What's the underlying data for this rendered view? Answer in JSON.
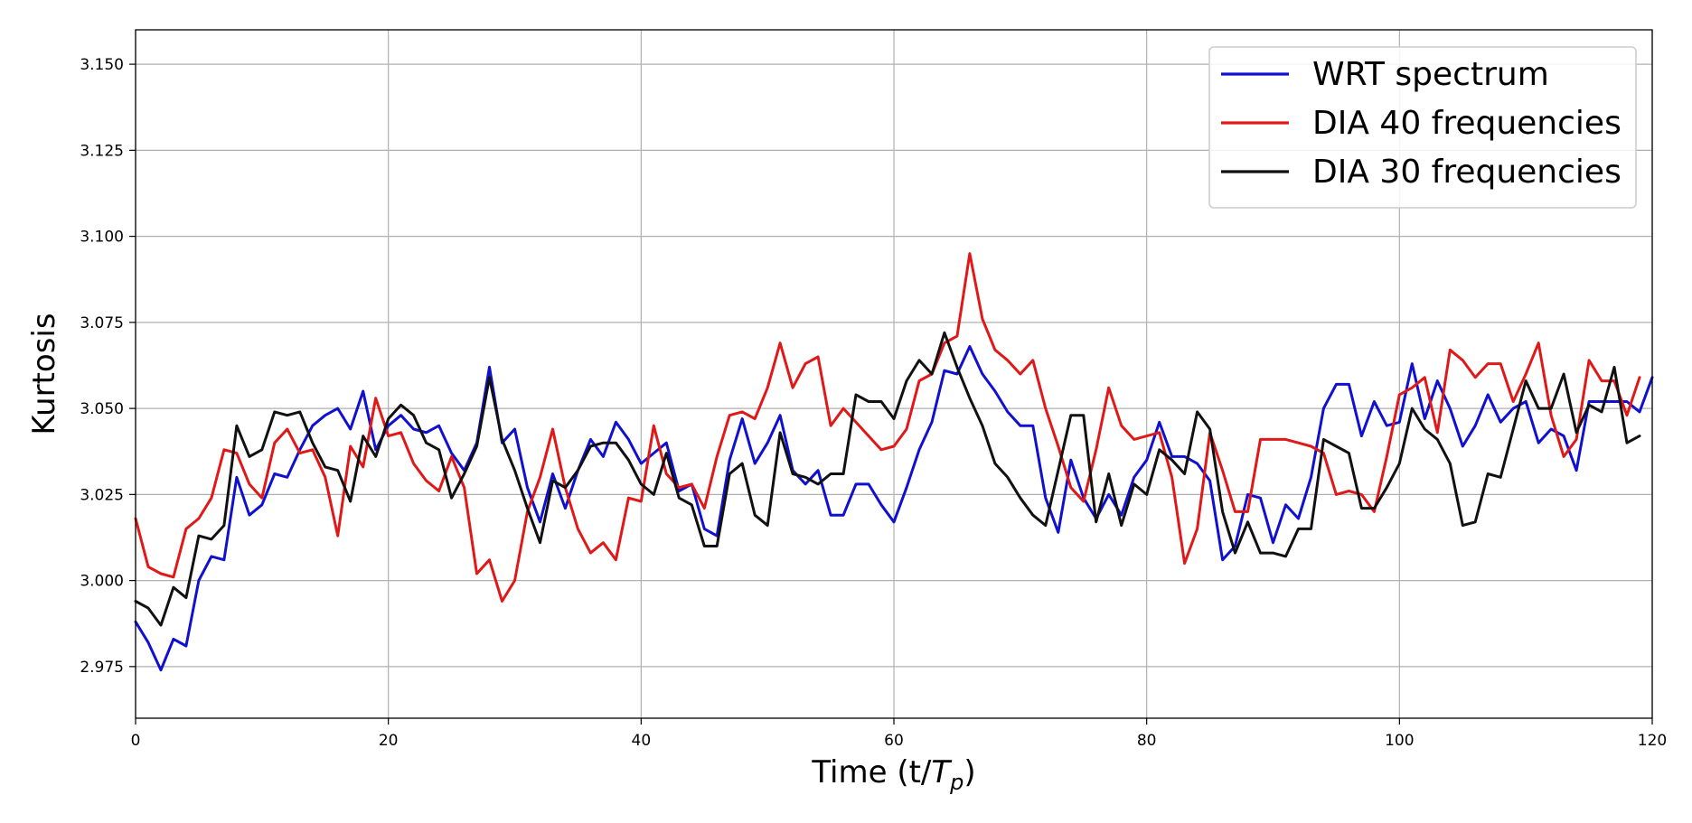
{
  "chart_data": {
    "type": "line",
    "title": "",
    "xlabel": "Time (t/",
    "xlabel_math": "T",
    "xlabel_sub": "p",
    "xlabel_close": ")",
    "ylabel": "Kurtosis",
    "xlim": [
      0,
      120
    ],
    "ylim": [
      2.96,
      3.16
    ],
    "xticks": [
      0,
      20,
      40,
      60,
      80,
      100,
      120
    ],
    "yticks": [
      2.975,
      3.0,
      3.025,
      3.05,
      3.075,
      3.1,
      3.125,
      3.15
    ],
    "xtick_labels": [
      "0",
      "20",
      "40",
      "60",
      "80",
      "100",
      "120"
    ],
    "ytick_labels": [
      "2.975",
      "3.000",
      "3.025",
      "3.050",
      "3.075",
      "3.100",
      "3.125",
      "3.150"
    ],
    "grid": true,
    "legend_position": "top-right",
    "series": [
      {
        "name": "WRT spectrum",
        "color": "#1010d0",
        "values": [
          2.988,
          2.982,
          2.974,
          2.983,
          2.981,
          3.0,
          3.007,
          3.006,
          3.03,
          3.019,
          3.022,
          3.031,
          3.03,
          3.038,
          3.045,
          3.048,
          3.05,
          3.044,
          3.055,
          3.038,
          3.045,
          3.048,
          3.044,
          3.043,
          3.045,
          3.037,
          3.032,
          3.04,
          3.062,
          3.04,
          3.044,
          3.027,
          3.017,
          3.031,
          3.021,
          3.032,
          3.041,
          3.036,
          3.046,
          3.041,
          3.034,
          3.037,
          3.04,
          3.026,
          3.028,
          3.015,
          3.013,
          3.035,
          3.047,
          3.034,
          3.04,
          3.048,
          3.032,
          3.028,
          3.032,
          3.019,
          3.019,
          3.028,
          3.028,
          3.022,
          3.017,
          3.027,
          3.038,
          3.046,
          3.061,
          3.06,
          3.068,
          3.06,
          3.055,
          3.049,
          3.045,
          3.045,
          3.024,
          3.014,
          3.035,
          3.024,
          3.018,
          3.025,
          3.019,
          3.03,
          3.035,
          3.046,
          3.036,
          3.036,
          3.034,
          3.029,
          3.006,
          3.01,
          3.025,
          3.024,
          3.011,
          3.022,
          3.018,
          3.03,
          3.05,
          3.057,
          3.057,
          3.042,
          3.052,
          3.045,
          3.046,
          3.063,
          3.047,
          3.058,
          3.05,
          3.039,
          3.045,
          3.054,
          3.046,
          3.05,
          3.052,
          3.04,
          3.044,
          3.042,
          3.032,
          3.052,
          3.052,
          3.052,
          3.052,
          3.049,
          3.059
        ]
      },
      {
        "name": "DIA 40 frequencies",
        "color": "#e01818",
        "values": [
          3.018,
          3.004,
          3.002,
          3.001,
          3.015,
          3.018,
          3.024,
          3.038,
          3.037,
          3.028,
          3.024,
          3.04,
          3.044,
          3.037,
          3.038,
          3.03,
          3.013,
          3.039,
          3.033,
          3.053,
          3.042,
          3.043,
          3.034,
          3.029,
          3.026,
          3.036,
          3.027,
          3.002,
          3.006,
          2.994,
          3.0,
          3.02,
          3.03,
          3.044,
          3.027,
          3.015,
          3.008,
          3.011,
          3.006,
          3.024,
          3.023,
          3.045,
          3.031,
          3.027,
          3.028,
          3.021,
          3.036,
          3.048,
          3.049,
          3.047,
          3.056,
          3.069,
          3.056,
          3.063,
          3.065,
          3.045,
          3.05,
          3.046,
          3.042,
          3.038,
          3.039,
          3.044,
          3.058,
          3.06,
          3.069,
          3.071,
          3.095,
          3.076,
          3.067,
          3.064,
          3.06,
          3.064,
          3.05,
          3.039,
          3.027,
          3.023,
          3.038,
          3.056,
          3.045,
          3.041,
          3.042,
          3.043,
          3.03,
          3.005,
          3.015,
          3.043,
          3.032,
          3.02,
          3.02,
          3.041,
          3.041,
          3.041,
          3.04,
          3.039,
          3.037,
          3.025,
          3.026,
          3.025,
          3.02,
          3.036,
          3.054,
          3.056,
          3.059,
          3.043,
          3.067,
          3.064,
          3.059,
          3.063,
          3.063,
          3.052,
          3.06,
          3.069,
          3.048,
          3.036,
          3.041,
          3.064,
          3.058,
          3.058,
          3.048,
          3.059
        ]
      },
      {
        "name": "DIA 30 frequencies",
        "color": "#111111",
        "values": [
          2.994,
          2.992,
          2.987,
          2.998,
          2.995,
          3.013,
          3.012,
          3.016,
          3.045,
          3.036,
          3.038,
          3.049,
          3.048,
          3.049,
          3.04,
          3.033,
          3.032,
          3.023,
          3.042,
          3.036,
          3.047,
          3.051,
          3.048,
          3.04,
          3.038,
          3.024,
          3.031,
          3.039,
          3.059,
          3.041,
          3.032,
          3.021,
          3.011,
          3.029,
          3.027,
          3.032,
          3.039,
          3.04,
          3.04,
          3.035,
          3.028,
          3.025,
          3.037,
          3.024,
          3.022,
          3.01,
          3.01,
          3.031,
          3.034,
          3.019,
          3.016,
          3.043,
          3.031,
          3.03,
          3.028,
          3.031,
          3.031,
          3.054,
          3.052,
          3.052,
          3.047,
          3.058,
          3.064,
          3.06,
          3.072,
          3.062,
          3.053,
          3.045,
          3.034,
          3.03,
          3.024,
          3.019,
          3.016,
          3.032,
          3.048,
          3.048,
          3.017,
          3.031,
          3.016,
          3.028,
          3.025,
          3.038,
          3.035,
          3.031,
          3.049,
          3.044,
          3.02,
          3.008,
          3.017,
          3.008,
          3.008,
          3.007,
          3.015,
          3.015,
          3.041,
          3.039,
          3.037,
          3.021,
          3.021,
          3.027,
          3.034,
          3.05,
          3.044,
          3.041,
          3.034,
          3.016,
          3.017,
          3.031,
          3.03,
          3.044,
          3.058,
          3.05,
          3.05,
          3.06,
          3.043,
          3.051,
          3.049,
          3.062,
          3.04,
          3.042
        ]
      }
    ]
  }
}
